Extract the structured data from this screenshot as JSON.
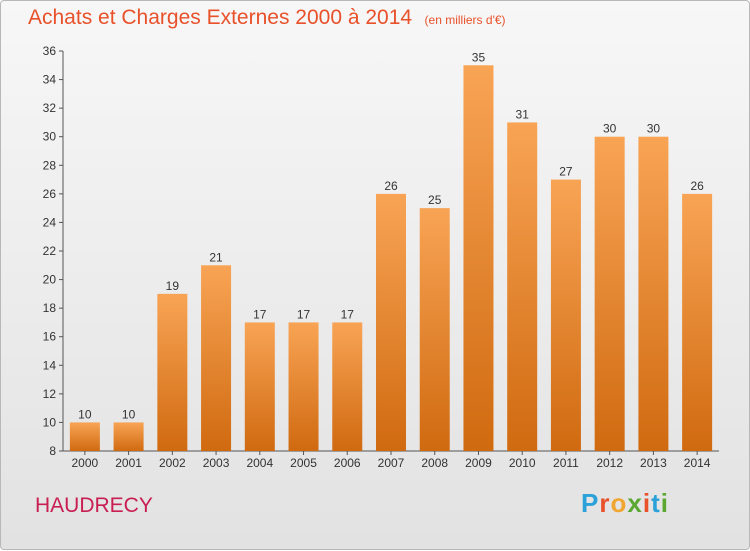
{
  "title": "Achats et Charges Externes 2000 à 2014",
  "subtitle": "(en milliers d'€)",
  "town": "HAUDRECY",
  "logo": {
    "letters": [
      "P",
      "r",
      "o",
      "x",
      "i",
      "t",
      "i"
    ],
    "colors": [
      "#2aa1d9",
      "#e8512a",
      "#f0a630",
      "#5aa832",
      "#e8512a",
      "#2aa1d9",
      "#5aa832"
    ]
  },
  "colors": {
    "bar_top": "#f8a455",
    "bar_bottom": "#d06a10",
    "title": "#e8512a",
    "town": "#c81e52"
  },
  "chart_data": {
    "type": "bar",
    "title": "Achats et Charges Externes 2000 à 2014",
    "subtitle": "(en milliers d'€)",
    "categories": [
      "2000",
      "2001",
      "2002",
      "2003",
      "2004",
      "2005",
      "2006",
      "2007",
      "2008",
      "2009",
      "2010",
      "2011",
      "2012",
      "2013",
      "2014"
    ],
    "values": [
      10,
      10,
      19,
      21,
      17,
      17,
      17,
      26,
      25,
      35,
      31,
      27,
      30,
      30,
      26
    ],
    "ylim": [
      8,
      36
    ],
    "yticks": [
      8,
      10,
      12,
      14,
      16,
      18,
      20,
      22,
      24,
      26,
      28,
      30,
      32,
      34,
      36
    ],
    "xlabel": "",
    "ylabel": "",
    "grid": false,
    "data_labels": true
  }
}
